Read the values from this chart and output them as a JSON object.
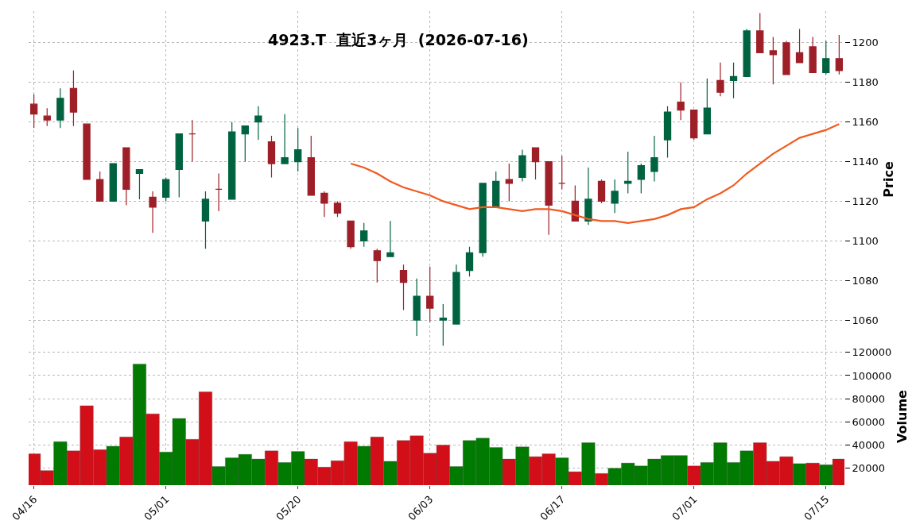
{
  "chart_data": [
    {
      "type": "candlestick",
      "title": "4923.T  直近3ヶ月  (2026-07-16)",
      "ylabel": "Price",
      "categories": [
        null,
        null,
        null,
        null,
        null,
        null,
        null,
        null,
        null,
        null,
        null,
        null,
        null,
        null,
        null,
        null,
        null,
        null,
        null,
        null,
        null,
        null,
        null,
        null,
        null,
        null,
        null,
        null,
        null,
        null,
        null,
        null,
        null,
        null,
        null,
        null,
        null,
        null,
        null,
        null,
        null,
        null,
        null,
        null,
        null,
        null,
        null,
        null,
        null,
        null,
        null,
        null,
        null,
        null,
        null,
        null,
        null,
        null,
        null,
        null,
        null,
        null
      ],
      "ohlc": [
        [
          1169,
          1174,
          1157,
          1164
        ],
        [
          1163,
          1167,
          1158,
          1161
        ],
        [
          1161,
          1177,
          1157,
          1172
        ],
        [
          1177,
          1186,
          1158,
          1165
        ],
        [
          1159,
          1159,
          1131,
          1131
        ],
        [
          1131,
          1135,
          1120,
          1120
        ],
        [
          1120,
          1139,
          1120,
          1139
        ],
        [
          1147,
          1147,
          1118,
          1126
        ],
        [
          1134,
          1136,
          1121,
          1136
        ],
        [
          1122,
          1125,
          1104,
          1117
        ],
        [
          1122,
          1132,
          1120,
          1131
        ],
        [
          1136,
          1154,
          1122,
          1154
        ],
        [
          1154,
          1161,
          1140,
          1154
        ],
        [
          1110,
          1125,
          1096,
          1121
        ],
        [
          1126,
          1134,
          1115,
          1126
        ],
        [
          1121,
          1160,
          1121,
          1155
        ],
        [
          1154,
          1158,
          1140,
          1158
        ],
        [
          1160,
          1168,
          1151,
          1163
        ],
        [
          1150,
          1153,
          1132,
          1139
        ],
        [
          1139,
          1164,
          1139,
          1142
        ],
        [
          1140,
          1157,
          1135,
          1146
        ],
        [
          1142,
          1153,
          1123,
          1123
        ],
        [
          1124,
          1125,
          1112,
          1119
        ],
        [
          1119,
          1120,
          1112,
          1114
        ],
        [
          1110,
          1110,
          1096,
          1097
        ],
        [
          1100,
          1109,
          1097,
          1105
        ],
        [
          1095,
          1096,
          1079,
          1090
        ],
        [
          1092,
          1110,
          1092,
          1094
        ],
        [
          1085,
          1088,
          1065,
          1079
        ],
        [
          1060,
          1081,
          1052,
          1072
        ],
        [
          1072,
          1087,
          1059,
          1066
        ],
        [
          1060,
          1068,
          1047,
          1061
        ],
        [
          1058,
          1088,
          1058,
          1084
        ],
        [
          1085,
          1097,
          1082,
          1094
        ],
        [
          1094,
          1129,
          1092,
          1129
        ],
        [
          1117,
          1135,
          1117,
          1130
        ],
        [
          1131,
          1139,
          1120,
          1129
        ],
        [
          1132,
          1146,
          1130,
          1143
        ],
        [
          1147,
          1147,
          1131,
          1140
        ],
        [
          1140,
          1140,
          1103,
          1118
        ],
        [
          1129,
          1143,
          1126,
          1129
        ],
        [
          1120,
          1128,
          1110,
          1110
        ],
        [
          1110,
          1137,
          1108,
          1121
        ],
        [
          1130,
          1131,
          1119,
          1120
        ],
        [
          1119,
          1131,
          1114,
          1125
        ],
        [
          1129,
          1145,
          1124,
          1130
        ],
        [
          1131,
          1139,
          1124,
          1138
        ],
        [
          1135,
          1153,
          1130,
          1142
        ],
        [
          1151,
          1168,
          1142,
          1165
        ],
        [
          1170,
          1180,
          1161,
          1166
        ],
        [
          1166,
          1166,
          1151,
          1152
        ],
        [
          1154,
          1182,
          1154,
          1167
        ],
        [
          1181,
          1190,
          1173,
          1175
        ],
        [
          1181,
          1190,
          1172,
          1183
        ],
        [
          1183,
          1207,
          1183,
          1206
        ],
        [
          1206,
          1215,
          1195,
          1195
        ],
        [
          1196,
          1203,
          1179,
          1194
        ],
        [
          1200,
          1201,
          1184,
          1184
        ],
        [
          1195,
          1207,
          1190,
          1190
        ],
        [
          1198,
          1203,
          1185,
          1185
        ],
        [
          1185,
          1201,
          1184,
          1192
        ],
        [
          1192,
          1204,
          1184,
          1186
        ]
      ],
      "colors": [
        "#9e1f28",
        "#9e1f28",
        "#006340",
        "#9e1f28",
        "#9e1f28",
        "#9e1f28",
        "#006340",
        "#9e1f28",
        "#006340",
        "#9e1f28",
        "#006340",
        "#006340",
        "#9e1f28",
        "#006340",
        "#9e1f28",
        "#006340",
        "#006340",
        "#006340",
        "#9e1f28",
        "#006340",
        "#006340",
        "#9e1f28",
        "#9e1f28",
        "#9e1f28",
        "#9e1f28",
        "#006340",
        "#9e1f28",
        "#006340",
        "#9e1f28",
        "#006340",
        "#9e1f28",
        "#006340",
        "#006340",
        "#006340",
        "#006340",
        "#006340",
        "#9e1f28",
        "#006340",
        "#9e1f28",
        "#9e1f28",
        "#9e1f28",
        "#9e1f28",
        "#006340",
        "#9e1f28",
        "#006340",
        "#006340",
        "#006340",
        "#006340",
        "#006340",
        "#9e1f28",
        "#9e1f28",
        "#006340",
        "#9e1f28",
        "#006340",
        "#006340",
        "#9e1f28",
        "#9e1f28",
        "#9e1f28",
        "#9e1f28",
        "#9e1f28",
        "#006340",
        "#9e1f28"
      ],
      "series": [
        {
          "type": "line",
          "color": "#f05a1e",
          "values": [
            null,
            null,
            null,
            null,
            null,
            null,
            null,
            null,
            null,
            null,
            null,
            null,
            null,
            null,
            null,
            null,
            null,
            null,
            null,
            null,
            null,
            null,
            null,
            null,
            1139,
            1137,
            1134,
            1130,
            1127,
            1125,
            1123,
            1120,
            1118,
            1116,
            1117,
            1117,
            1116,
            1115,
            1116,
            1116,
            1115,
            1113,
            1111,
            1110,
            1110,
            1109,
            1110,
            1111,
            1113,
            1116,
            1117,
            1121,
            1124,
            1128,
            1134,
            1139,
            1144,
            1148,
            1152,
            1154,
            1156,
            1159
          ]
        }
      ],
      "ylim": [
        1046,
        1216
      ],
      "yticks": [
        1060,
        1080,
        1100,
        1120,
        1140,
        1160,
        1180,
        1200
      ],
      "grid": true,
      "tick_labels": "y"
    },
    {
      "type": "bar",
      "ylabel": "Volume",
      "categories": [
        "04/16",
        null,
        null,
        null,
        null,
        null,
        null,
        null,
        null,
        null,
        "05/01",
        null,
        null,
        null,
        null,
        null,
        null,
        null,
        null,
        null,
        "05/20",
        null,
        null,
        null,
        null,
        null,
        null,
        null,
        null,
        null,
        "06/03",
        null,
        null,
        null,
        null,
        null,
        null,
        null,
        null,
        null,
        "06/17",
        null,
        null,
        null,
        null,
        null,
        null,
        null,
        null,
        null,
        "07/01",
        null,
        null,
        null,
        null,
        null,
        null,
        null,
        null,
        null,
        "07/15",
        null
      ],
      "values": [
        32500,
        18000,
        43000,
        35000,
        74000,
        36000,
        39000,
        47000,
        110000,
        67000,
        34000,
        63000,
        45000,
        86000,
        21500,
        29000,
        32000,
        28000,
        35000,
        25000,
        34500,
        28000,
        21000,
        26500,
        43000,
        39000,
        47000,
        26000,
        44000,
        48000,
        33000,
        40000,
        21500,
        44000,
        46000,
        38000,
        28000,
        38500,
        30000,
        32500,
        29000,
        17000,
        42000,
        15500,
        20000,
        24500,
        22000,
        28000,
        31000,
        31000,
        22000,
        25000,
        42000,
        25000,
        35000,
        42000,
        26000,
        30000,
        24000,
        24500,
        23000,
        28000
      ],
      "colors": [
        "#d20f19",
        "#d20f19",
        "#007a00",
        "#d20f19",
        "#d20f19",
        "#d20f19",
        "#007a00",
        "#d20f19",
        "#007a00",
        "#d20f19",
        "#007a00",
        "#007a00",
        "#d20f19",
        "#d20f19",
        "#007a00",
        "#007a00",
        "#007a00",
        "#007a00",
        "#d20f19",
        "#007a00",
        "#007a00",
        "#d20f19",
        "#d20f19",
        "#d20f19",
        "#d20f19",
        "#007a00",
        "#d20f19",
        "#007a00",
        "#d20f19",
        "#d20f19",
        "#d20f19",
        "#d20f19",
        "#007a00",
        "#007a00",
        "#007a00",
        "#007a00",
        "#d20f19",
        "#007a00",
        "#d20f19",
        "#d20f19",
        "#007a00",
        "#d20f19",
        "#007a00",
        "#d20f19",
        "#007a00",
        "#007a00",
        "#007a00",
        "#007a00",
        "#007a00",
        "#007a00",
        "#d20f19",
        "#007a00",
        "#007a00",
        "#007a00",
        "#007a00",
        "#d20f19",
        "#d20f19",
        "#d20f19",
        "#007a00",
        "#d20f19",
        "#007a00",
        "#d20f19"
      ],
      "ylim": [
        5400,
        124000
      ],
      "yticks": [
        20000,
        40000,
        60000,
        80000,
        100000,
        120000
      ],
      "grid": true
    }
  ]
}
